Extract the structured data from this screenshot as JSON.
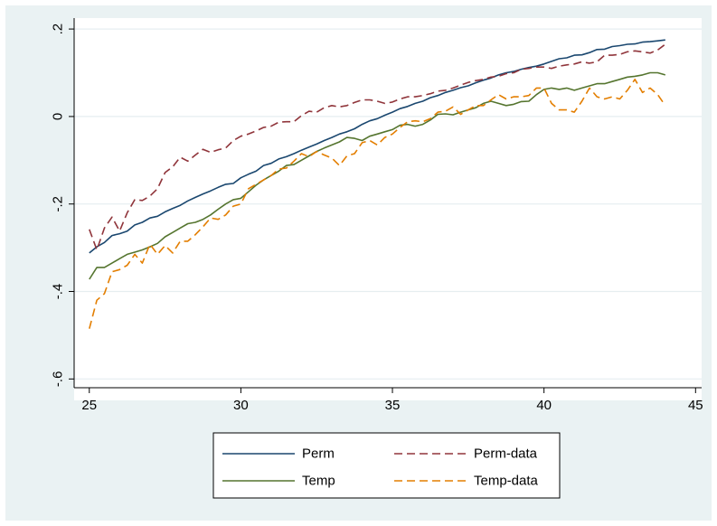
{
  "chart_data": {
    "type": "line",
    "title": "",
    "xlabel": "",
    "ylabel": "",
    "xlim": [
      24.5,
      45.2
    ],
    "ylim": [
      -0.62,
      0.225
    ],
    "xticks": [
      25,
      30,
      35,
      40,
      45
    ],
    "yticks": [
      0.2,
      0,
      -0.2,
      -0.4,
      -0.6
    ],
    "xtick_labels": [
      "25",
      "30",
      "35",
      "40",
      "45"
    ],
    "ytick_labels": [
      ".2",
      "0",
      "-.2",
      "-.4",
      "-.6"
    ],
    "grid": "horizontal",
    "legend_position": "bottom",
    "x": [
      25,
      25.25,
      25.5,
      25.75,
      26,
      26.25,
      26.5,
      26.75,
      27,
      27.25,
      27.5,
      27.75,
      28,
      28.25,
      28.5,
      28.75,
      29,
      29.25,
      29.5,
      29.75,
      30,
      30.25,
      30.5,
      30.75,
      31,
      31.25,
      31.5,
      31.75,
      32,
      32.25,
      32.5,
      32.75,
      33,
      33.25,
      33.5,
      33.75,
      34,
      34.25,
      34.5,
      34.75,
      35,
      35.25,
      35.5,
      35.75,
      36,
      36.25,
      36.5,
      36.75,
      37,
      37.25,
      37.5,
      37.75,
      38,
      38.25,
      38.5,
      38.75,
      39,
      39.25,
      39.5,
      39.75,
      40,
      40.25,
      40.5,
      40.75,
      41,
      41.25,
      41.5,
      41.75,
      42,
      42.25,
      42.5,
      42.75,
      43,
      43.25,
      43.5,
      43.75,
      44
    ],
    "series": [
      {
        "name": "Perm",
        "color": "#1a476f",
        "dash": "solid",
        "values": [
          -0.312,
          -0.298,
          -0.288,
          -0.272,
          -0.268,
          -0.262,
          -0.248,
          -0.242,
          -0.232,
          -0.228,
          -0.218,
          -0.21,
          -0.203,
          -0.193,
          -0.185,
          -0.177,
          -0.17,
          -0.162,
          -0.155,
          -0.153,
          -0.14,
          -0.132,
          -0.125,
          -0.112,
          -0.107,
          -0.097,
          -0.092,
          -0.085,
          -0.077,
          -0.07,
          -0.063,
          -0.055,
          -0.048,
          -0.04,
          -0.035,
          -0.028,
          -0.018,
          -0.01,
          -0.005,
          0.003,
          0.01,
          0.018,
          0.023,
          0.03,
          0.035,
          0.043,
          0.048,
          0.055,
          0.06,
          0.066,
          0.07,
          0.077,
          0.083,
          0.088,
          0.095,
          0.1,
          0.103,
          0.108,
          0.112,
          0.115,
          0.12,
          0.126,
          0.132,
          0.134,
          0.14,
          0.141,
          0.146,
          0.153,
          0.154,
          0.16,
          0.162,
          0.165,
          0.166,
          0.17,
          0.171,
          0.173,
          0.175
        ]
      },
      {
        "name": "Perm-data",
        "color": "#90353b",
        "dash": "dash",
        "values": [
          -0.258,
          -0.305,
          -0.255,
          -0.23,
          -0.262,
          -0.22,
          -0.19,
          -0.192,
          -0.182,
          -0.165,
          -0.128,
          -0.115,
          -0.093,
          -0.102,
          -0.088,
          -0.075,
          -0.082,
          -0.076,
          -0.072,
          -0.055,
          -0.045,
          -0.04,
          -0.033,
          -0.025,
          -0.022,
          -0.013,
          -0.012,
          -0.012,
          0.002,
          0.012,
          0.01,
          0.02,
          0.025,
          0.022,
          0.025,
          0.032,
          0.038,
          0.038,
          0.035,
          0.03,
          0.033,
          0.04,
          0.045,
          0.045,
          0.048,
          0.052,
          0.058,
          0.06,
          0.065,
          0.072,
          0.078,
          0.082,
          0.085,
          0.09,
          0.092,
          0.098,
          0.1,
          0.108,
          0.11,
          0.113,
          0.113,
          0.11,
          0.115,
          0.118,
          0.12,
          0.125,
          0.122,
          0.125,
          0.14,
          0.14,
          0.142,
          0.148,
          0.15,
          0.148,
          0.145,
          0.152,
          0.165
        ]
      },
      {
        "name": "Temp",
        "color": "#55752f",
        "dash": "solid",
        "values": [
          -0.372,
          -0.345,
          -0.345,
          -0.335,
          -0.325,
          -0.315,
          -0.31,
          -0.305,
          -0.298,
          -0.29,
          -0.275,
          -0.265,
          -0.255,
          -0.245,
          -0.242,
          -0.235,
          -0.225,
          -0.212,
          -0.2,
          -0.19,
          -0.187,
          -0.172,
          -0.157,
          -0.145,
          -0.135,
          -0.125,
          -0.112,
          -0.11,
          -0.1,
          -0.09,
          -0.08,
          -0.072,
          -0.065,
          -0.058,
          -0.048,
          -0.05,
          -0.055,
          -0.045,
          -0.04,
          -0.035,
          -0.03,
          -0.02,
          -0.018,
          -0.022,
          -0.018,
          -0.008,
          0.005,
          0.006,
          0.004,
          0.01,
          0.015,
          0.02,
          0.03,
          0.035,
          0.03,
          0.025,
          0.028,
          0.034,
          0.035,
          0.05,
          0.062,
          0.065,
          0.062,
          0.065,
          0.06,
          0.065,
          0.07,
          0.075,
          0.075,
          0.08,
          0.085,
          0.09,
          0.092,
          0.095,
          0.1,
          0.1,
          0.095
        ]
      },
      {
        "name": "Temp-data",
        "color": "#e37e00",
        "dash": "dash",
        "values": [
          -0.485,
          -0.42,
          -0.405,
          -0.355,
          -0.35,
          -0.34,
          -0.315,
          -0.335,
          -0.292,
          -0.315,
          -0.295,
          -0.312,
          -0.285,
          -0.285,
          -0.27,
          -0.252,
          -0.232,
          -0.235,
          -0.225,
          -0.205,
          -0.2,
          -0.165,
          -0.155,
          -0.145,
          -0.135,
          -0.12,
          -0.118,
          -0.102,
          -0.085,
          -0.092,
          -0.08,
          -0.088,
          -0.095,
          -0.112,
          -0.09,
          -0.085,
          -0.06,
          -0.055,
          -0.065,
          -0.048,
          -0.04,
          -0.025,
          -0.012,
          -0.01,
          -0.012,
          -0.005,
          0.01,
          0.012,
          0.022,
          0.005,
          0.015,
          0.025,
          0.025,
          0.038,
          0.05,
          0.04,
          0.045,
          0.045,
          0.048,
          0.065,
          0.065,
          0.03,
          0.015,
          0.015,
          0.01,
          0.035,
          0.065,
          0.045,
          0.04,
          0.045,
          0.04,
          0.06,
          0.085,
          0.055,
          0.065,
          0.05,
          0.025
        ]
      }
    ]
  }
}
